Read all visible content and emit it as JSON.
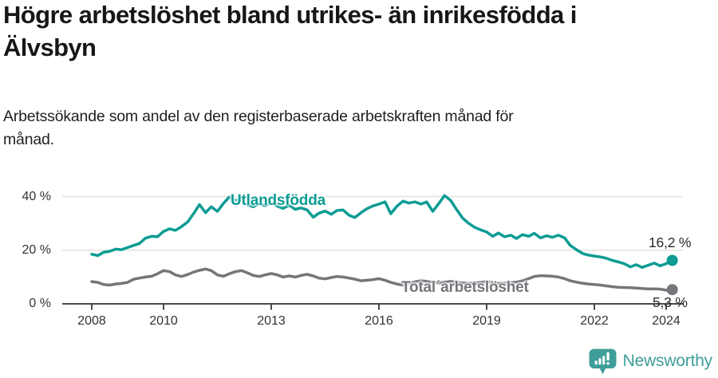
{
  "header": {
    "title": "Högre arbetslöshet bland utrikes- än inrikesfödda i Älvsbyn",
    "title_lines": [
      "Högre arbetslöshet bland utrikes- än inrikesfödda i",
      "Älvsbyn"
    ],
    "subtitle": "Arbetssökande som andel av den registerbaserade arbetskraften månad för månad.",
    "subtitle_lines": [
      "Arbetssökande som andel av den registerbaserade arbetskraften månad för",
      "månad."
    ]
  },
  "chart_data": {
    "type": "line",
    "title": "Högre arbetslöshet bland utrikes- än inrikesfödda i Älvsbyn",
    "xlabel": "",
    "ylabel": "",
    "y_unit": "%",
    "xlim": [
      2007.6,
      2024.6
    ],
    "ylim": [
      0,
      44
    ],
    "grid": "horizontal",
    "legend": "inline-labels",
    "y_ticks": [
      {
        "value": 0,
        "label": "0 %"
      },
      {
        "value": 20,
        "label": "20 %"
      },
      {
        "value": 40,
        "label": "40 %"
      }
    ],
    "x_ticks": [
      {
        "value": 2008,
        "label": "2008"
      },
      {
        "value": 2010,
        "label": "2010"
      },
      {
        "value": 2013,
        "label": "2013"
      },
      {
        "value": 2016,
        "label": "2016"
      },
      {
        "value": 2019,
        "label": "2019"
      },
      {
        "value": 2022,
        "label": "2022"
      },
      {
        "value": 2024,
        "label": "2024"
      }
    ],
    "x": [
      2008,
      2008.17,
      2008.33,
      2008.5,
      2008.67,
      2008.83,
      2009,
      2009.17,
      2009.33,
      2009.5,
      2009.67,
      2009.83,
      2010,
      2010.17,
      2010.33,
      2010.5,
      2010.67,
      2010.83,
      2011,
      2011.17,
      2011.33,
      2011.5,
      2011.67,
      2011.83,
      2012,
      2012.17,
      2012.33,
      2012.5,
      2012.67,
      2012.83,
      2013,
      2013.17,
      2013.33,
      2013.5,
      2013.67,
      2013.83,
      2014,
      2014.17,
      2014.33,
      2014.5,
      2014.67,
      2014.83,
      2015,
      2015.17,
      2015.33,
      2015.5,
      2015.67,
      2015.83,
      2016,
      2016.17,
      2016.33,
      2016.5,
      2016.67,
      2016.83,
      2017,
      2017.17,
      2017.33,
      2017.5,
      2017.67,
      2017.83,
      2018,
      2018.17,
      2018.33,
      2018.5,
      2018.67,
      2018.83,
      2019,
      2019.17,
      2019.33,
      2019.5,
      2019.67,
      2019.83,
      2020,
      2020.17,
      2020.33,
      2020.5,
      2020.67,
      2020.83,
      2021,
      2021.17,
      2021.33,
      2021.5,
      2021.67,
      2021.83,
      2022,
      2022.17,
      2022.33,
      2022.5,
      2022.67,
      2022.83,
      2023,
      2023.17,
      2023.33,
      2023.5,
      2023.67,
      2023.83,
      2024,
      2024.17
    ],
    "series": [
      {
        "name": "Utlandsfödda",
        "color": "#0d9c94",
        "end_label": "16,2 %",
        "end_value": 16.2,
        "values": [
          18.5,
          18.0,
          19.2,
          19.6,
          20.4,
          20.2,
          21.0,
          21.8,
          22.5,
          24.5,
          25.2,
          25.0,
          27.0,
          28.0,
          27.4,
          28.8,
          30.5,
          33.5,
          37.0,
          34.0,
          36.2,
          34.5,
          37.5,
          39.8,
          38.5,
          39.2,
          37.0,
          36.2,
          37.4,
          36.6,
          37.8,
          36.4,
          35.6,
          36.8,
          35.2,
          35.8,
          35.0,
          32.3,
          33.8,
          34.6,
          33.4,
          34.8,
          35.0,
          33.0,
          32.2,
          34.0,
          35.5,
          36.5,
          37.2,
          38.0,
          33.6,
          36.4,
          38.3,
          37.6,
          38.0,
          37.2,
          38.0,
          34.5,
          37.5,
          40.4,
          38.5,
          35.0,
          32.0,
          30.0,
          28.5,
          27.6,
          26.8,
          25.2,
          26.4,
          25.0,
          25.6,
          24.4,
          25.8,
          25.2,
          26.3,
          24.6,
          25.4,
          24.8,
          25.6,
          24.6,
          21.8,
          20.2,
          18.8,
          18.2,
          17.8,
          17.5,
          17.0,
          16.2,
          15.6,
          15.0,
          13.8,
          14.6,
          13.6,
          14.4,
          15.2,
          14.2,
          15.0,
          16.2
        ]
      },
      {
        "name": "Total´arbetslöshet",
        "color": "#75757b",
        "end_label": "5,3 %",
        "end_value": 5.3,
        "values": [
          8.3,
          8.0,
          7.2,
          7.0,
          7.4,
          7.6,
          8.0,
          9.2,
          9.6,
          10.0,
          10.3,
          11.2,
          12.4,
          12.0,
          10.8,
          10.2,
          10.9,
          11.8,
          12.5,
          13.0,
          12.4,
          10.8,
          10.3,
          11.2,
          12.0,
          12.4,
          11.6,
          10.6,
          10.2,
          10.8,
          11.3,
          10.8,
          10.0,
          10.4,
          10.0,
          10.6,
          11.0,
          10.4,
          9.6,
          9.3,
          9.8,
          10.2,
          10.0,
          9.6,
          9.2,
          8.6,
          8.8,
          9.0,
          9.4,
          8.8,
          8.0,
          7.4,
          7.0,
          7.6,
          8.2,
          8.6,
          8.4,
          8.0,
          7.8,
          8.1,
          8.4,
          8.1,
          7.8,
          7.6,
          7.8,
          8.0,
          8.3,
          7.9,
          7.6,
          7.7,
          7.9,
          8.1,
          8.6,
          9.4,
          10.2,
          10.5,
          10.4,
          10.3,
          10.0,
          9.4,
          8.6,
          8.1,
          7.7,
          7.4,
          7.2,
          7.0,
          6.7,
          6.4,
          6.2,
          6.1,
          6.0,
          5.9,
          5.7,
          5.6,
          5.6,
          5.5,
          5.1,
          5.3
        ]
      }
    ]
  },
  "footer": {
    "brand": "Newsworthy",
    "brand_color": "#3f9e9a",
    "logo_icon": "newsworthy-badge-bar-chart-icon"
  }
}
